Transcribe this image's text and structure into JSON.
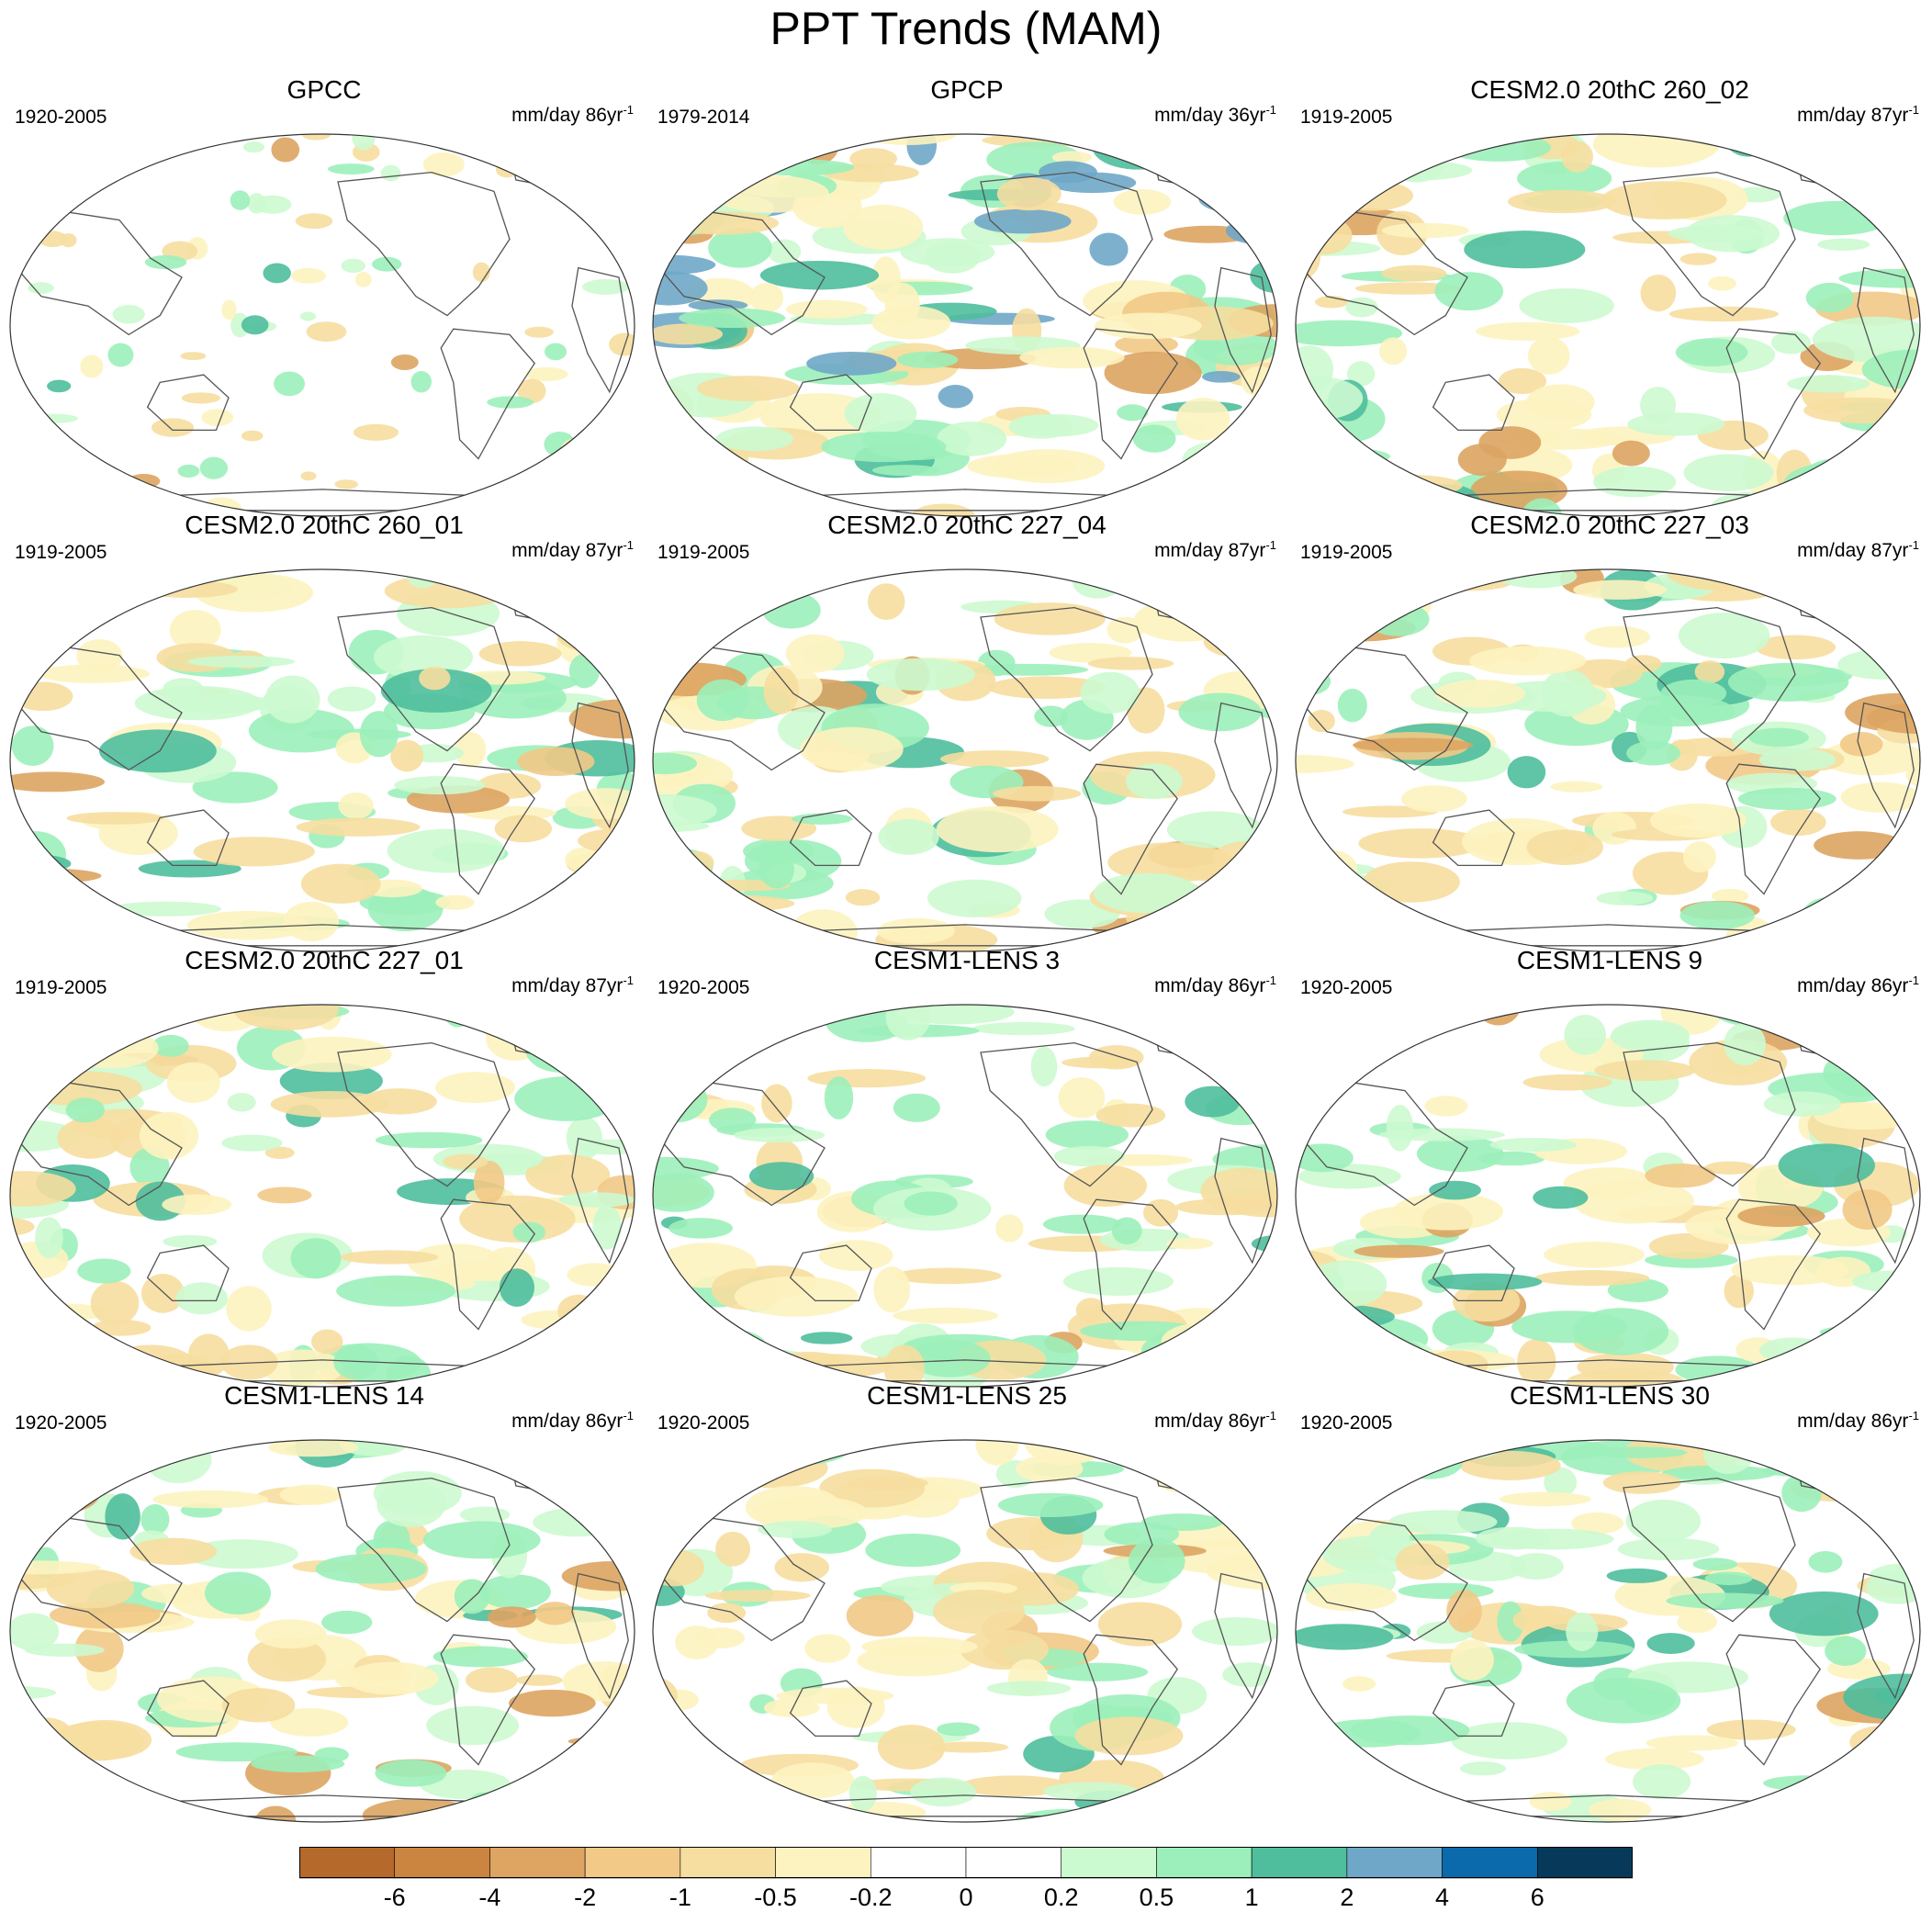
{
  "title": "PPT Trends (MAM)",
  "panels": [
    {
      "title": "GPCC",
      "period": "1920-2005",
      "units_text": "mm/day 86yr",
      "units_exp": "-1",
      "pattern": "obs_land"
    },
    {
      "title": "GPCP",
      "period": "1979-2014",
      "units_text": "mm/day 36yr",
      "units_exp": "-1",
      "pattern": "obs_gpcp"
    },
    {
      "title": "CESM2.0 20thC 260_02",
      "period": "1919-2005",
      "units_text": "mm/day 87yr",
      "units_exp": "-1",
      "pattern": "model_a"
    },
    {
      "title": "CESM2.0 20thC 260_01",
      "period": "1919-2005",
      "units_text": "mm/day 87yr",
      "units_exp": "-1",
      "pattern": "model_b"
    },
    {
      "title": "CESM2.0 20thC 227_04",
      "period": "1919-2005",
      "units_text": "mm/day 87yr",
      "units_exp": "-1",
      "pattern": "model_c"
    },
    {
      "title": "CESM2.0 20thC 227_03",
      "period": "1919-2005",
      "units_text": "mm/day 87yr",
      "units_exp": "-1",
      "pattern": "model_d"
    },
    {
      "title": "CESM2.0 20thC 227_01",
      "period": "1919-2005",
      "units_text": "mm/day 87yr",
      "units_exp": "-1",
      "pattern": "model_e"
    },
    {
      "title": "CESM1-LENS 3",
      "period": "1920-2005",
      "units_text": "mm/day 86yr",
      "units_exp": "-1",
      "pattern": "model_f"
    },
    {
      "title": "CESM1-LENS 9",
      "period": "1920-2005",
      "units_text": "mm/day 86yr",
      "units_exp": "-1",
      "pattern": "model_g"
    },
    {
      "title": "CESM1-LENS 14",
      "period": "1920-2005",
      "units_text": "mm/day 86yr",
      "units_exp": "-1",
      "pattern": "model_h"
    },
    {
      "title": "CESM1-LENS 25",
      "period": "1920-2005",
      "units_text": "mm/day 86yr",
      "units_exp": "-1",
      "pattern": "model_i"
    },
    {
      "title": "CESM1-LENS 30",
      "period": "1920-2005",
      "units_text": "mm/day 86yr",
      "units_exp": "-1",
      "pattern": "model_j"
    }
  ],
  "colorbar": {
    "colors": [
      "#b5692a",
      "#cc8540",
      "#dda462",
      "#f2c986",
      "#f6dea0",
      "#fdf3c0",
      "#ffffff",
      "#ffffff",
      "#ccfad0",
      "#9cefba",
      "#4fbe9c",
      "#6fa7c8",
      "#0a6aab",
      "#073a5a"
    ],
    "labels": [
      "-6",
      "-4",
      "-2",
      "-1",
      "-0.5",
      "-0.2",
      "0",
      "0.2",
      "0.5",
      "1",
      "2",
      "4",
      "6"
    ]
  }
}
